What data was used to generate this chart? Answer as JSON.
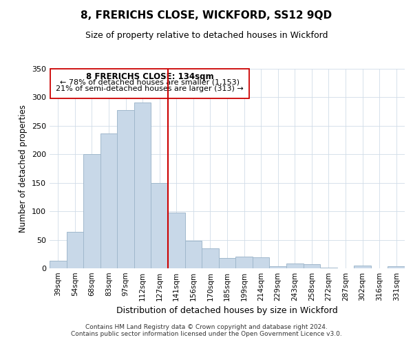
{
  "title": "8, FRERICHS CLOSE, WICKFORD, SS12 9QD",
  "subtitle": "Size of property relative to detached houses in Wickford",
  "xlabel": "Distribution of detached houses by size in Wickford",
  "ylabel": "Number of detached properties",
  "bar_color": "#c8d8e8",
  "bar_edge_color": "#a0b8cc",
  "marker_line_color": "#cc0000",
  "annotation_line1": "8 FRERICHS CLOSE: 134sqm",
  "annotation_line2": "← 78% of detached houses are smaller (1,153)",
  "annotation_line3": "21% of semi-detached houses are larger (313) →",
  "categories": [
    "39sqm",
    "54sqm",
    "68sqm",
    "83sqm",
    "97sqm",
    "112sqm",
    "127sqm",
    "141sqm",
    "156sqm",
    "170sqm",
    "185sqm",
    "199sqm",
    "214sqm",
    "229sqm",
    "243sqm",
    "258sqm",
    "272sqm",
    "287sqm",
    "302sqm",
    "316sqm",
    "331sqm"
  ],
  "values": [
    13,
    64,
    200,
    237,
    278,
    291,
    150,
    98,
    48,
    35,
    18,
    20,
    19,
    4,
    8,
    7,
    1,
    0,
    5,
    0,
    4
  ],
  "ylim": [
    0,
    350
  ],
  "yticks": [
    0,
    50,
    100,
    150,
    200,
    250,
    300,
    350
  ],
  "figsize": [
    6.0,
    5.0
  ],
  "dpi": 100,
  "footer_line1": "Contains HM Land Registry data © Crown copyright and database right 2024.",
  "footer_line2": "Contains public sector information licensed under the Open Government Licence v3.0.",
  "box_rect_color": "#cc0000",
  "annotation_box_fill": "#ffffff",
  "background_color": "#ffffff"
}
